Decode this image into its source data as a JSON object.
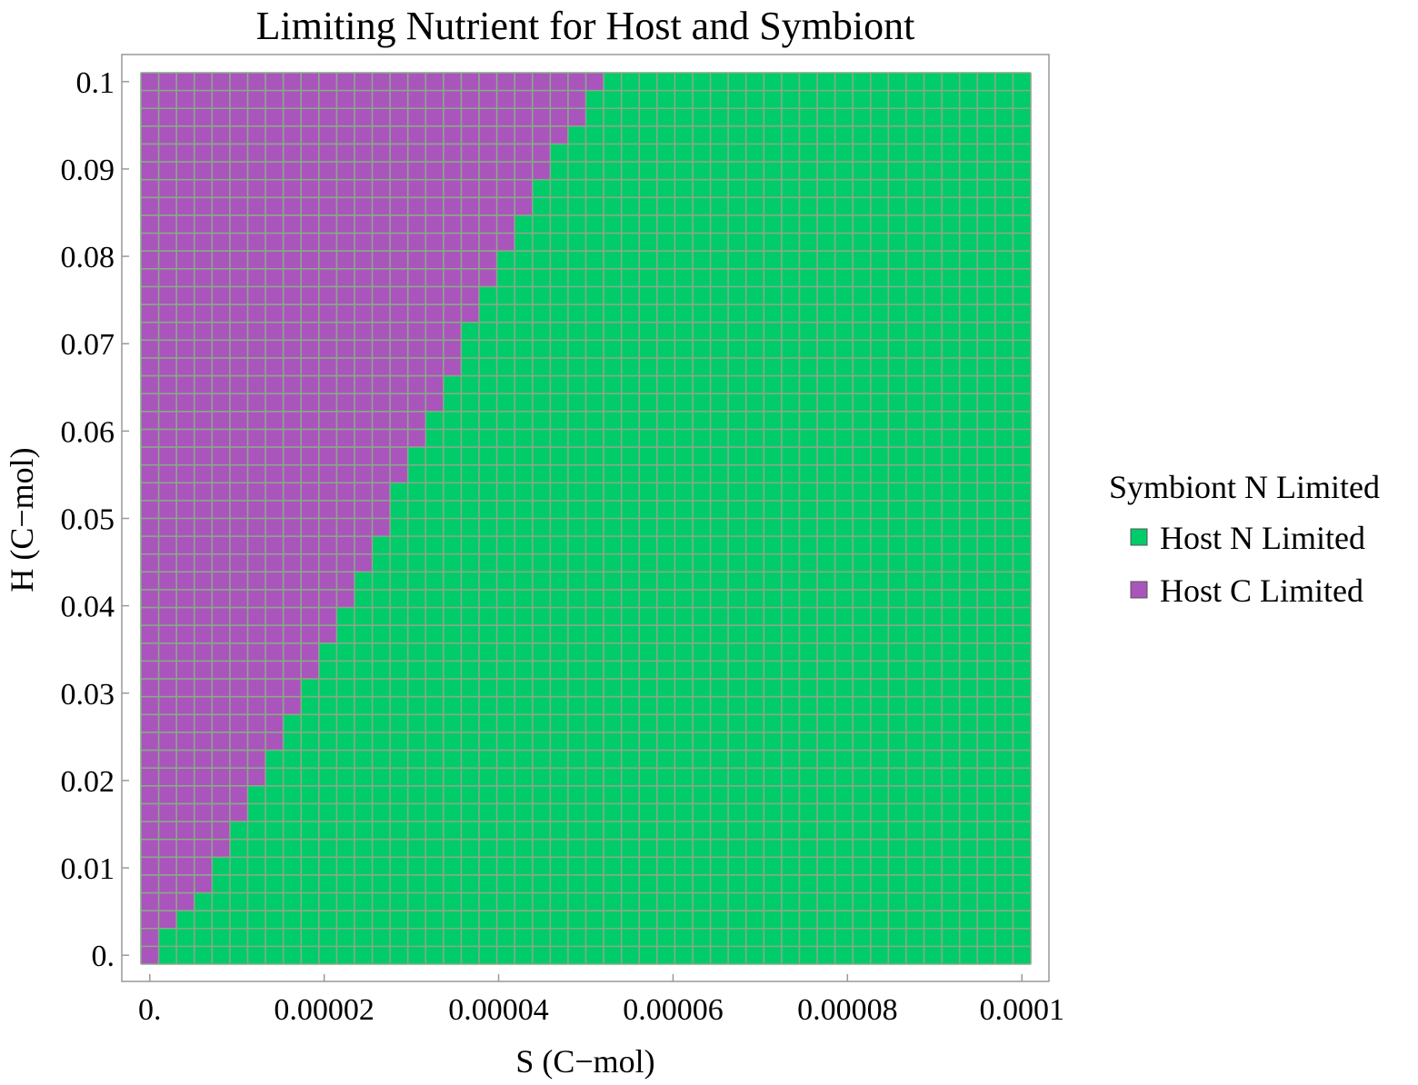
{
  "chart_data": {
    "type": "heatmap",
    "title": "Limiting Nutrient for Host and Symbiont",
    "xlabel": "S (C−mol)",
    "ylabel": "H (C−mol)",
    "x_ticks": [
      "0.",
      "0.00002",
      "0.00004",
      "0.00006",
      "0.00008",
      "0.0001"
    ],
    "y_ticks": [
      "0.",
      "0.01",
      "0.02",
      "0.03",
      "0.04",
      "0.05",
      "0.06",
      "0.07",
      "0.08",
      "0.09",
      "0.1"
    ],
    "xlim": [
      0,
      0.0001
    ],
    "ylim": [
      0,
      0.1
    ],
    "grid": {
      "columns": 50,
      "rows": 50,
      "x_step": 2e-06,
      "y_step": 0.002,
      "line_color": "#8aa88a"
    },
    "region_rule": "For row r (0 = bottom), cells in columns 0..boundary[r]-1 are Host C Limited; remaining cells are Host N Limited.",
    "boundary": [
      1,
      1,
      2,
      3,
      4,
      4,
      5,
      5,
      6,
      6,
      7,
      7,
      8,
      8,
      9,
      9,
      10,
      10,
      11,
      11,
      12,
      12,
      13,
      13,
      14,
      14,
      14,
      15,
      15,
      16,
      16,
      17,
      17,
      18,
      18,
      18,
      19,
      19,
      20,
      20,
      21,
      21,
      22,
      22,
      23,
      23,
      24,
      25,
      25,
      26
    ],
    "legend": {
      "title": "Symbiont N Limited",
      "position": "right",
      "items": [
        {
          "label": "Host N Limited",
          "color": "#00cc6a"
        },
        {
          "label": "Host C Limited",
          "color": "#aa55bb"
        }
      ]
    }
  }
}
